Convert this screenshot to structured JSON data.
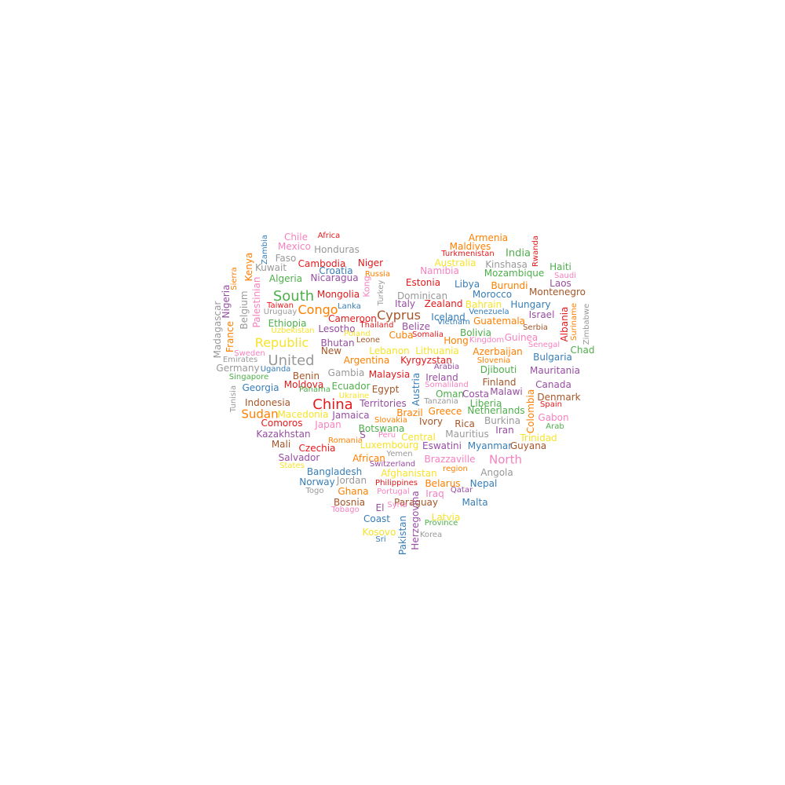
{
  "palette": {
    "red": "#e41a1c",
    "blue": "#377eb8",
    "green": "#4daf4a",
    "purple": "#984ea3",
    "orange": "#ff7f00",
    "yellow": "#f7e32a",
    "brown": "#a65628",
    "pink": "#f781bf",
    "gray": "#999999"
  },
  "words": [
    {
      "text": "Chile",
      "color": "pink"
    },
    {
      "text": "Africa",
      "color": "red"
    },
    {
      "text": "Armenia",
      "color": "orange"
    },
    {
      "text": "Mexico",
      "color": "pink"
    },
    {
      "text": "Honduras",
      "color": "gray"
    },
    {
      "text": "Maldives",
      "color": "orange"
    },
    {
      "text": "Turkmenistan",
      "color": "red"
    },
    {
      "text": "India",
      "color": "green"
    },
    {
      "text": "Rwanda",
      "color": "red"
    },
    {
      "text": "Zambia",
      "color": "blue"
    },
    {
      "text": "Faso",
      "color": "gray"
    },
    {
      "text": "Cambodia",
      "color": "red"
    },
    {
      "text": "Niger",
      "color": "red"
    },
    {
      "text": "Australia",
      "color": "yellow"
    },
    {
      "text": "Kinshasa",
      "color": "gray"
    },
    {
      "text": "Haiti",
      "color": "green"
    },
    {
      "text": "Kenya",
      "color": "orange"
    },
    {
      "text": "Kuwait",
      "color": "gray"
    },
    {
      "text": "Croatia",
      "color": "blue"
    },
    {
      "text": "Russia",
      "color": "orange"
    },
    {
      "text": "Namibia",
      "color": "pink"
    },
    {
      "text": "Mozambique",
      "color": "green"
    },
    {
      "text": "Saudi",
      "color": "pink"
    },
    {
      "text": "Sierra",
      "color": "orange"
    },
    {
      "text": "Algeria",
      "color": "green"
    },
    {
      "text": "Nicaragua",
      "color": "purple"
    },
    {
      "text": "Estonia",
      "color": "red"
    },
    {
      "text": "Libya",
      "color": "blue"
    },
    {
      "text": "Burundi",
      "color": "orange"
    },
    {
      "text": "Laos",
      "color": "purple"
    },
    {
      "text": "Nigeria",
      "color": "purple"
    },
    {
      "text": "Palestinian",
      "color": "pink"
    },
    {
      "text": "South",
      "color": "green"
    },
    {
      "text": "Mongolia",
      "color": "red"
    },
    {
      "text": "Kong",
      "color": "pink"
    },
    {
      "text": "Turkey",
      "color": "gray"
    },
    {
      "text": "Dominican",
      "color": "gray"
    },
    {
      "text": "Morocco",
      "color": "blue"
    },
    {
      "text": "Montenegro",
      "color": "brown"
    },
    {
      "text": "Belgium",
      "color": "gray"
    },
    {
      "text": "Taiwan",
      "color": "red"
    },
    {
      "text": "Lanka",
      "color": "blue"
    },
    {
      "text": "Italy",
      "color": "purple"
    },
    {
      "text": "Zealand",
      "color": "red"
    },
    {
      "text": "Bahrain",
      "color": "yellow"
    },
    {
      "text": "Hungary",
      "color": "blue"
    },
    {
      "text": "Madagascar",
      "color": "gray"
    },
    {
      "text": "Uruguay",
      "color": "gray"
    },
    {
      "text": "Congo",
      "color": "orange"
    },
    {
      "text": "Cyprus",
      "color": "brown"
    },
    {
      "text": "Venezuela",
      "color": "blue"
    },
    {
      "text": "Israel",
      "color": "purple"
    },
    {
      "text": "Suriname",
      "color": "orange"
    },
    {
      "text": "Zimbabwe",
      "color": "gray"
    },
    {
      "text": "Cameroon",
      "color": "red"
    },
    {
      "text": "Iceland",
      "color": "blue"
    },
    {
      "text": "Guatemala",
      "color": "orange"
    },
    {
      "text": "France",
      "color": "orange"
    },
    {
      "text": "Ethiopia",
      "color": "green"
    },
    {
      "text": "Lesotho",
      "color": "purple"
    },
    {
      "text": "Thailand",
      "color": "red"
    },
    {
      "text": "Belize",
      "color": "purple"
    },
    {
      "text": "Vietnam",
      "color": "blue"
    },
    {
      "text": "Serbia",
      "color": "brown"
    },
    {
      "text": "Albania",
      "color": "red"
    },
    {
      "text": "Uzbekistan",
      "color": "yellow"
    },
    {
      "text": "Poland",
      "color": "yellow"
    },
    {
      "text": "Cuba",
      "color": "orange"
    },
    {
      "text": "Somalia",
      "color": "red"
    },
    {
      "text": "Bolivia",
      "color": "green"
    },
    {
      "text": "Guinea",
      "color": "pink"
    },
    {
      "text": "Republic",
      "color": "yellow"
    },
    {
      "text": "Bhutan",
      "color": "purple"
    },
    {
      "text": "Leone",
      "color": "brown"
    },
    {
      "text": "Hong",
      "color": "orange"
    },
    {
      "text": "Kingdom",
      "color": "pink"
    },
    {
      "text": "Senegal",
      "color": "pink"
    },
    {
      "text": "Chad",
      "color": "green"
    },
    {
      "text": "Sweden",
      "color": "pink"
    },
    {
      "text": "New",
      "color": "brown"
    },
    {
      "text": "Lebanon",
      "color": "yellow"
    },
    {
      "text": "Lithuania",
      "color": "yellow"
    },
    {
      "text": "Azerbaijan",
      "color": "orange"
    },
    {
      "text": "Emirates",
      "color": "gray"
    },
    {
      "text": "United",
      "color": "gray"
    },
    {
      "text": "Argentina",
      "color": "orange"
    },
    {
      "text": "Kyrgyzstan",
      "color": "red"
    },
    {
      "text": "Slovenia",
      "color": "orange"
    },
    {
      "text": "Bulgaria",
      "color": "blue"
    },
    {
      "text": "Germany",
      "color": "gray"
    },
    {
      "text": "Uganda",
      "color": "blue"
    },
    {
      "text": "Arabia",
      "color": "purple"
    },
    {
      "text": "Djibouti",
      "color": "green"
    },
    {
      "text": "Mauritania",
      "color": "purple"
    },
    {
      "text": "Gambia",
      "color": "gray"
    },
    {
      "text": "Malaysia",
      "color": "red"
    },
    {
      "text": "Ireland",
      "color": "purple"
    },
    {
      "text": "Singapore",
      "color": "green"
    },
    {
      "text": "Benin",
      "color": "brown"
    },
    {
      "text": "Finland",
      "color": "brown"
    },
    {
      "text": "Canada",
      "color": "purple"
    },
    {
      "text": "Moldova",
      "color": "red"
    },
    {
      "text": "Somaliland",
      "color": "pink"
    },
    {
      "text": "Georgia",
      "color": "blue"
    },
    {
      "text": "Ecuador",
      "color": "green"
    },
    {
      "text": "Egypt",
      "color": "brown"
    },
    {
      "text": "Malawi",
      "color": "purple"
    },
    {
      "text": "Panama",
      "color": "green"
    },
    {
      "text": "Ukraine",
      "color": "yellow"
    },
    {
      "text": "Austria",
      "color": "blue"
    },
    {
      "text": "Oman",
      "color": "green"
    },
    {
      "text": "Costa",
      "color": "purple"
    },
    {
      "text": "Denmark",
      "color": "brown"
    },
    {
      "text": "Tunisia",
      "color": "gray"
    },
    {
      "text": "Indonesia",
      "color": "brown"
    },
    {
      "text": "China",
      "color": "red"
    },
    {
      "text": "Territories",
      "color": "purple"
    },
    {
      "text": "Tanzania",
      "color": "gray"
    },
    {
      "text": "Liberia",
      "color": "green"
    },
    {
      "text": "Spain",
      "color": "red"
    },
    {
      "text": "Colombia",
      "color": "orange"
    },
    {
      "text": "Sudan",
      "color": "orange"
    },
    {
      "text": "Macedonia",
      "color": "yellow"
    },
    {
      "text": "Jamaica",
      "color": "purple"
    },
    {
      "text": "Brazil",
      "color": "orange"
    },
    {
      "text": "Greece",
      "color": "orange"
    },
    {
      "text": "Netherlands",
      "color": "green"
    },
    {
      "text": "Gabon",
      "color": "pink"
    },
    {
      "text": "Comoros",
      "color": "red"
    },
    {
      "text": "Slovakia",
      "color": "orange"
    },
    {
      "text": "Ivory",
      "color": "brown"
    },
    {
      "text": "Rica",
      "color": "brown"
    },
    {
      "text": "Burkina",
      "color": "gray"
    },
    {
      "text": "Arab",
      "color": "green"
    },
    {
      "text": "Japan",
      "color": "pink"
    },
    {
      "text": "Botswana",
      "color": "green"
    },
    {
      "text": "Iran",
      "color": "purple"
    },
    {
      "text": "Kazakhstan",
      "color": "purple"
    },
    {
      "text": "S",
      "color": "purple"
    },
    {
      "text": "Peru",
      "color": "pink"
    },
    {
      "text": "Central",
      "color": "yellow"
    },
    {
      "text": "Mauritius",
      "color": "gray"
    },
    {
      "text": "Trinidad",
      "color": "yellow"
    },
    {
      "text": "Mali",
      "color": "brown"
    },
    {
      "text": "Romania",
      "color": "orange"
    },
    {
      "text": "Luxembourg",
      "color": "yellow"
    },
    {
      "text": "Eswatini",
      "color": "purple"
    },
    {
      "text": "Myanmar",
      "color": "blue"
    },
    {
      "text": "Guyana",
      "color": "brown"
    },
    {
      "text": "Czechia",
      "color": "red"
    },
    {
      "text": "Yemen",
      "color": "gray"
    },
    {
      "text": "Salvador",
      "color": "purple"
    },
    {
      "text": "African",
      "color": "orange"
    },
    {
      "text": "Brazzaville",
      "color": "pink"
    },
    {
      "text": "North",
      "color": "pink"
    },
    {
      "text": "Switzerland",
      "color": "purple"
    },
    {
      "text": "States",
      "color": "yellow"
    },
    {
      "text": "region",
      "color": "orange"
    },
    {
      "text": "Bangladesh",
      "color": "blue"
    },
    {
      "text": "Afghanistan",
      "color": "yellow"
    },
    {
      "text": "Angola",
      "color": "gray"
    },
    {
      "text": "Jordan",
      "color": "gray"
    },
    {
      "text": "Norway",
      "color": "blue"
    },
    {
      "text": "Philippines",
      "color": "red"
    },
    {
      "text": "Belarus",
      "color": "orange"
    },
    {
      "text": "Nepal",
      "color": "blue"
    },
    {
      "text": "Togo",
      "color": "gray"
    },
    {
      "text": "Ghana",
      "color": "orange"
    },
    {
      "text": "Portugal",
      "color": "pink"
    },
    {
      "text": "Iraq",
      "color": "pink"
    },
    {
      "text": "Qatar",
      "color": "purple"
    },
    {
      "text": "Malta",
      "color": "blue"
    },
    {
      "text": "Bosnia",
      "color": "brown"
    },
    {
      "text": "Paraguay",
      "color": "brown"
    },
    {
      "text": "El",
      "color": "purple"
    },
    {
      "text": "Syria",
      "color": "pink"
    },
    {
      "text": "Tobago",
      "color": "pink"
    },
    {
      "text": "Herzegovina",
      "color": "purple"
    },
    {
      "text": "Latvia",
      "color": "yellow"
    },
    {
      "text": "Coast",
      "color": "blue"
    },
    {
      "text": "Province",
      "color": "green"
    },
    {
      "text": "Pakistan",
      "color": "blue"
    },
    {
      "text": "Kosovo",
      "color": "yellow"
    },
    {
      "text": "Korea",
      "color": "gray"
    },
    {
      "text": "Sri",
      "color": "blue"
    }
  ]
}
